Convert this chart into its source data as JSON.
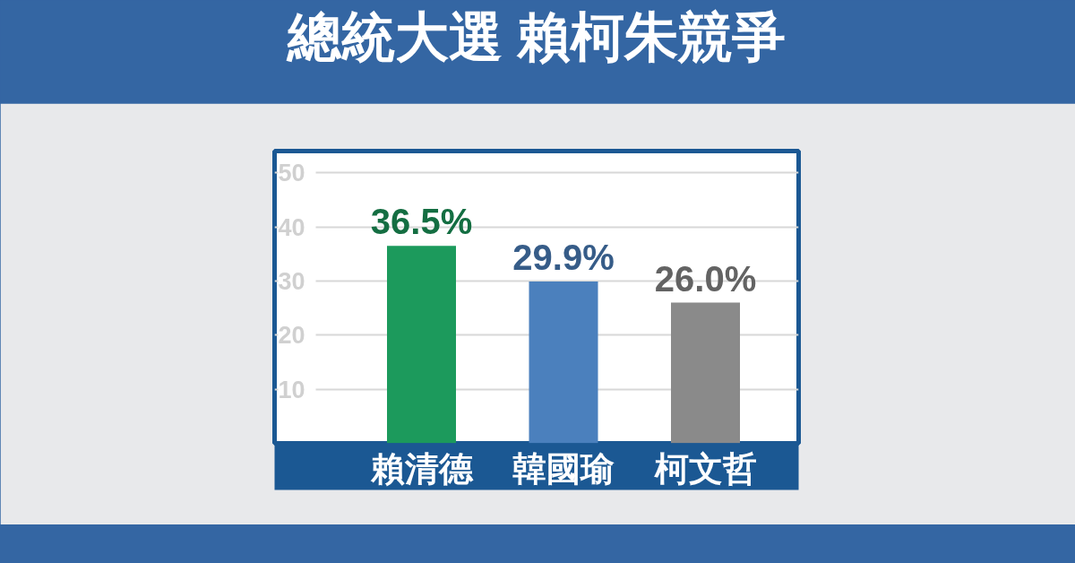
{
  "chart_data": {
    "type": "bar",
    "title": "總統大選 賴柯朱競爭",
    "categories": [
      "賴清德",
      "韓國瑜",
      "柯文哲"
    ],
    "values": [
      36.5,
      29.9,
      26.0
    ],
    "colors": [
      "#1c9a5c",
      "#4b80bd",
      "#8a8a8a"
    ],
    "value_labels": [
      "36.5%",
      "29.9%",
      "26.0%"
    ],
    "ylim": [
      0,
      54
    ],
    "yticks": [
      10,
      20,
      30,
      40,
      50
    ],
    "grid": "y"
  }
}
